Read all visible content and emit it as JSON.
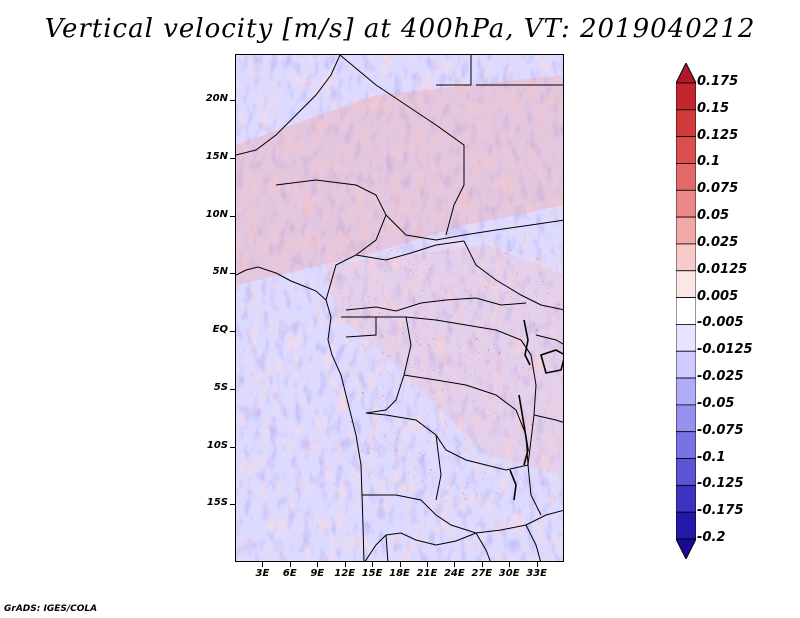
{
  "title": "Vertical velocity [m/s] at 400hPa, VT: 2019040212",
  "credit": "GrADS: IGES/COLA",
  "map": {
    "variable": "Vertical velocity",
    "units": "m/s",
    "level": "400hPa",
    "valid_time": "2019040212",
    "lon_range": [
      0,
      36
    ],
    "lat_range": [
      -20,
      24
    ],
    "lat_labels": [
      "20N",
      "15N",
      "10N",
      "5N",
      "EQ",
      "5S",
      "10S",
      "15S"
    ],
    "lat_values": [
      20,
      15,
      10,
      5,
      0,
      -5,
      -10,
      -15
    ],
    "lon_labels": [
      "3E",
      "6E",
      "9E",
      "12E",
      "15E",
      "18E",
      "21E",
      "24E",
      "27E",
      "30E",
      "33E"
    ],
    "lon_values": [
      3,
      6,
      9,
      12,
      15,
      18,
      21,
      24,
      27,
      30,
      33
    ]
  },
  "colorbar": {
    "labels": [
      "0.175",
      "0.15",
      "0.125",
      "0.1",
      "0.075",
      "0.05",
      "0.025",
      "0.0125",
      "0.005",
      "-0.005",
      "-0.0125",
      "-0.025",
      "-0.05",
      "-0.075",
      "-0.1",
      "-0.125",
      "-0.175",
      "-0.2"
    ],
    "colors": [
      "#b2182b",
      "#c1272d",
      "#d03a3a",
      "#dc4f4f",
      "#e46a6a",
      "#ec8888",
      "#f3a8a8",
      "#f8caca",
      "#fce6e6",
      "#ffffff",
      "#e6e4ff",
      "#cfcaff",
      "#b1acf7",
      "#9690ef",
      "#7a72e3",
      "#5c54d4",
      "#3c34c0",
      "#2418a8",
      "#1a0b94"
    ]
  }
}
